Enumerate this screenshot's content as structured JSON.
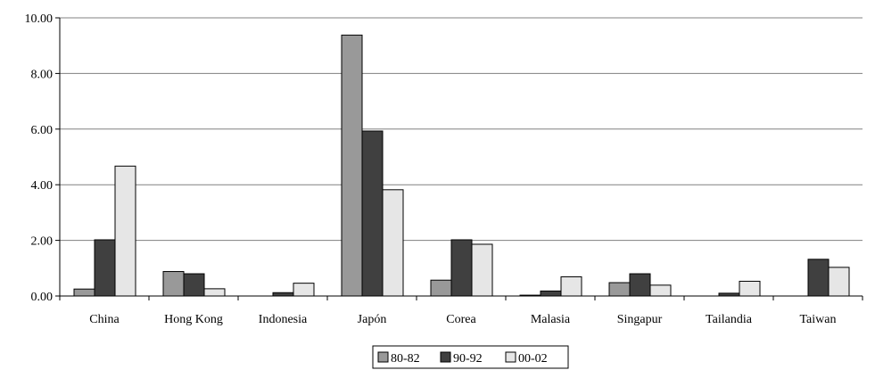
{
  "chart_data": {
    "type": "bar",
    "categories": [
      "China",
      "Hong Kong",
      "Indonesia",
      "Japón",
      "Corea",
      "Malasia",
      "Singapur",
      "Tailandia",
      "Taiwan"
    ],
    "series": [
      {
        "name": "80-82",
        "color": "#999999",
        "values": [
          0.25,
          0.88,
          0.0,
          9.38,
          0.57,
          0.03,
          0.48,
          0.0,
          0.0
        ]
      },
      {
        "name": "90-92",
        "color": "#404040",
        "values": [
          2.02,
          0.8,
          0.12,
          5.93,
          2.02,
          0.18,
          0.8,
          0.1,
          1.32
        ]
      },
      {
        "name": "00-02",
        "color": "#e6e6e6",
        "values": [
          4.67,
          0.26,
          0.46,
          3.82,
          1.86,
          0.69,
          0.39,
          0.53,
          1.03
        ]
      }
    ],
    "yticks": [
      "0.00",
      "2.00",
      "4.00",
      "6.00",
      "8.00",
      "10.00"
    ],
    "ylim": [
      0,
      10
    ],
    "grid": true,
    "legend_position": "bottom-center",
    "title": "",
    "xlabel": "",
    "ylabel": ""
  }
}
